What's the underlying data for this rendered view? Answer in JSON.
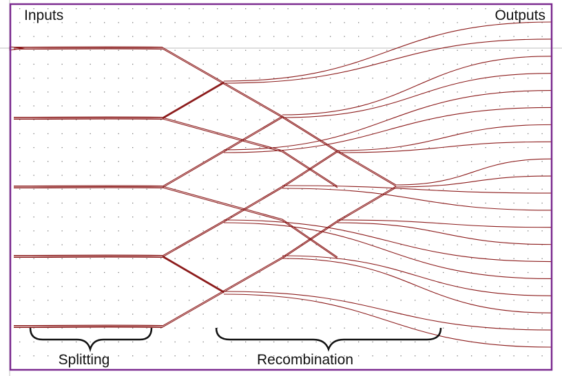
{
  "labels": {
    "inputs": "Inputs",
    "outputs": "Outputs",
    "splitting": "Splitting",
    "recombination": "Recombination"
  },
  "colors": {
    "frame": "#7b2a8f",
    "waveguide": "#8b1a1a",
    "grid_dot": "#7a7a7a",
    "guide_line": "#bdbdbd",
    "brace": "#111111",
    "text": "#111111"
  },
  "diagram": {
    "input_count": 5,
    "output_count": 20,
    "section_labels": [
      "Splitting",
      "Recombination"
    ]
  }
}
